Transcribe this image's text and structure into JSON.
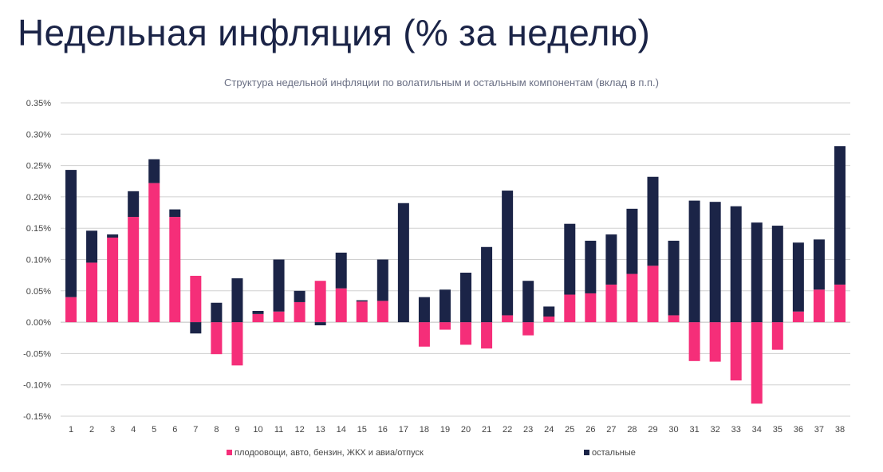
{
  "page": {
    "title": "Недельная инфляция (% за неделю)"
  },
  "colors": {
    "volatile": "#f52e79",
    "other": "#1b2447",
    "grid": "#d0d0d0",
    "title": "#1b2447"
  },
  "chart_data": {
    "type": "bar",
    "stacked": true,
    "title": "Структура недельной инфляции по волатильным и остальным компонентам (вклад в п.п.)",
    "xlabel": "",
    "ylabel": "",
    "ylim": [
      -0.15,
      0.35
    ],
    "yticks": [
      "0.35%",
      "0.30%",
      "0.25%",
      "0.20%",
      "0.15%",
      "0.10%",
      "0.05%",
      "0.00%",
      "-0.05%",
      "-0.10%",
      "-0.15%"
    ],
    "ytick_values": [
      0.35,
      0.3,
      0.25,
      0.2,
      0.15,
      0.1,
      0.05,
      0.0,
      -0.05,
      -0.1,
      -0.15
    ],
    "grid": true,
    "legend_position": "bottom",
    "categories": [
      "1",
      "2",
      "3",
      "4",
      "5",
      "6",
      "7",
      "8",
      "9",
      "10",
      "11",
      "12",
      "13",
      "14",
      "15",
      "16",
      "17",
      "18",
      "19",
      "20",
      "21",
      "22",
      "23",
      "24",
      "25",
      "26",
      "27",
      "28",
      "29",
      "30",
      "31",
      "32",
      "33",
      "34",
      "35",
      "36",
      "37",
      "38"
    ],
    "series": [
      {
        "name": "плодоовощи, авто, бензин, ЖКХ и авиа/отпуск",
        "color_key": "volatile",
        "values": [
          0.04,
          0.095,
          0.135,
          0.168,
          0.222,
          0.168,
          0.074,
          -0.051,
          -0.069,
          0.013,
          0.017,
          0.032,
          0.066,
          0.054,
          0.033,
          0.034,
          0.0,
          -0.039,
          -0.012,
          -0.036,
          -0.042,
          0.011,
          -0.021,
          0.009,
          0.044,
          0.046,
          0.06,
          0.077,
          0.09,
          0.011,
          -0.062,
          -0.063,
          -0.093,
          -0.13,
          -0.044,
          0.017,
          0.052,
          0.06
        ]
      },
      {
        "name": "остальные",
        "color_key": "other",
        "values": [
          0.203,
          0.051,
          0.005,
          0.041,
          0.038,
          0.012,
          -0.018,
          0.031,
          0.07,
          0.005,
          0.083,
          0.018,
          -0.005,
          0.057,
          0.002,
          0.066,
          0.19,
          0.04,
          0.052,
          0.079,
          0.12,
          0.199,
          0.066,
          0.016,
          0.113,
          0.084,
          0.08,
          0.104,
          0.142,
          0.119,
          0.194,
          0.192,
          0.185,
          0.159,
          0.154,
          0.11,
          0.08,
          0.221
        ]
      }
    ]
  }
}
